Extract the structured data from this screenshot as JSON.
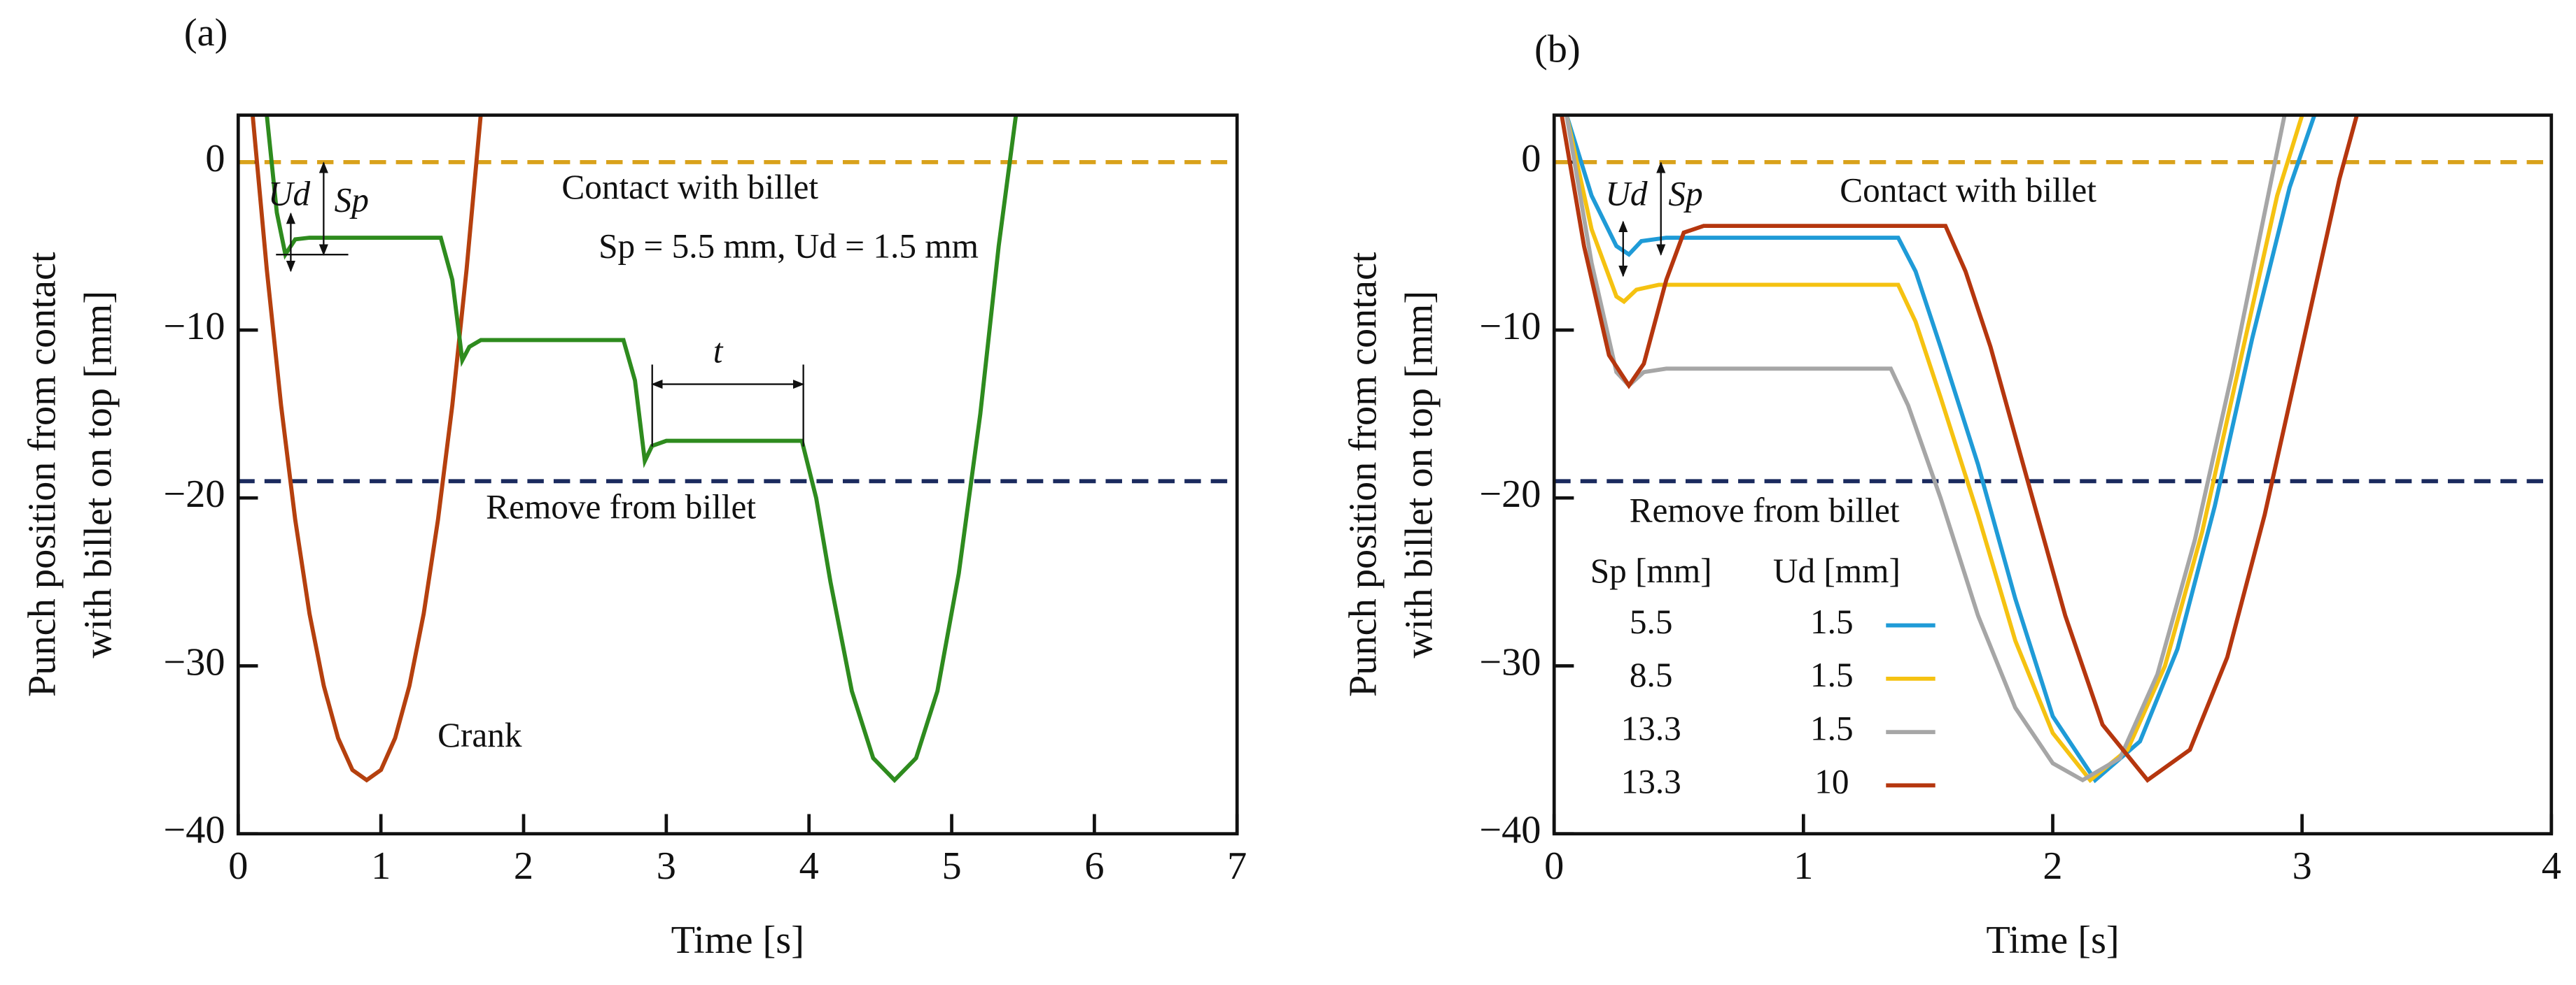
{
  "chart_data": [
    {
      "type": "line",
      "panel_label": "(a)",
      "xlabel": "Time [s]",
      "ylabel": [
        "Punch position from contact",
        "with billet on top [mm]"
      ],
      "xlim": [
        0,
        7
      ],
      "ylim": [
        -40,
        2.8
      ],
      "xticks": [
        0,
        1,
        2,
        3,
        4,
        5,
        6,
        7
      ],
      "yticks": [
        0,
        {
          "value": -10,
          "label": "−10"
        },
        {
          "value": -20,
          "label": "−20"
        },
        {
          "value": -30,
          "label": "−30"
        },
        {
          "value": -40,
          "label": "−40"
        }
      ],
      "hlines": [
        {
          "label": "Contact with billet",
          "value": 0,
          "color": "#d9a21b"
        },
        {
          "label": "Remove from billet",
          "value": -19,
          "color": "#1a2a5e"
        }
      ],
      "annotations": [
        "Crank",
        "Sp = 5.5 mm, Ud = 1.5 mm",
        "t",
        "Ud",
        "Sp"
      ],
      "series": [
        {
          "color": "#b5400e",
          "x": [
            0.1,
            0.2,
            0.3,
            0.4,
            0.5,
            0.6,
            0.7,
            0.8,
            0.9,
            1.0,
            1.1,
            1.2,
            1.3,
            1.4,
            1.5,
            1.6,
            1.7
          ],
          "values": [
            2.9,
            -6.4,
            -14.5,
            -21.3,
            -26.9,
            -31.2,
            -34.3,
            -36.2,
            -36.8,
            -36.2,
            -34.3,
            -31.2,
            -26.9,
            -21.3,
            -14.5,
            -6.4,
            2.9
          ]
        },
        {
          "color": "#2e8b1e",
          "x": [
            0.2,
            0.27,
            0.33,
            0.4,
            0.5,
            1.42,
            1.5,
            1.57,
            1.62,
            1.7,
            2.7,
            2.78,
            2.85,
            2.9,
            3.0,
            3.95,
            4.05,
            4.15,
            4.3,
            4.45,
            4.6,
            4.75,
            4.9,
            5.05,
            5.2,
            5.33,
            5.45
          ],
          "values": [
            2.8,
            -3,
            -5.5,
            -4.6,
            -4.5,
            -4.5,
            -7,
            -11.8,
            -11,
            -10.6,
            -10.6,
            -13,
            -17.8,
            -16.9,
            -16.6,
            -16.6,
            -20,
            -25,
            -31.5,
            -35.5,
            -36.8,
            -35.5,
            -31.5,
            -24.5,
            -15,
            -5,
            2.8
          ]
        }
      ]
    },
    {
      "type": "line",
      "panel_label": "(b)",
      "xlabel": "Time [s]",
      "ylabel": [
        "Punch position from contact",
        "with billet on top [mm]"
      ],
      "xlim": [
        0,
        4
      ],
      "ylim": [
        -40,
        2.8
      ],
      "xticks": [
        0,
        1,
        2,
        3,
        4
      ],
      "yticks": [
        0,
        {
          "value": -10,
          "label": "−10"
        },
        {
          "value": -20,
          "label": "−20"
        },
        {
          "value": -30,
          "label": "−30"
        },
        {
          "value": -40,
          "label": "−40"
        }
      ],
      "hlines": [
        {
          "label": "Contact with billet",
          "value": 0,
          "color": "#d9a21b"
        },
        {
          "label": "Remove from billet",
          "value": -19,
          "color": "#1a2a5e"
        }
      ],
      "annotations": [
        "Ud",
        "Sp"
      ],
      "legend_headers": [
        "Sp [mm]",
        "Ud [mm]"
      ],
      "series": [
        {
          "sp": 5.5,
          "ud": 1.5,
          "color": "#1f9bd7",
          "x": [
            0.05,
            0.15,
            0.25,
            0.3,
            0.35,
            0.45,
            1.38,
            1.45,
            1.55,
            1.7,
            1.85,
            2.0,
            2.17,
            2.35,
            2.5,
            2.65,
            2.8,
            2.95,
            3.05
          ],
          "values": [
            2.8,
            -2,
            -5,
            -5.5,
            -4.7,
            -4.5,
            -4.5,
            -6.5,
            -11,
            -18,
            -26,
            -33,
            -36.8,
            -34.5,
            -29,
            -20.5,
            -10.5,
            -1.5,
            2.8
          ]
        },
        {
          "sp": 8.5,
          "ud": 1.5,
          "color": "#f5c211",
          "x": [
            0.05,
            0.15,
            0.25,
            0.28,
            0.33,
            0.42,
            1.38,
            1.45,
            1.55,
            1.7,
            1.85,
            2.0,
            2.15,
            2.3,
            2.45,
            2.6,
            2.75,
            2.9,
            3.0
          ],
          "values": [
            2.8,
            -4,
            -8,
            -8.3,
            -7.6,
            -7.3,
            -7.3,
            -9.5,
            -14,
            -21,
            -28.5,
            -34,
            -36.8,
            -35,
            -30,
            -22,
            -12,
            -2,
            2.8
          ]
        },
        {
          "sp": 13.3,
          "ud": 1.5,
          "color": "#a6a6a6",
          "x": [
            0.05,
            0.15,
            0.25,
            0.3,
            0.36,
            0.45,
            1.35,
            1.42,
            1.55,
            1.7,
            1.85,
            2.0,
            2.12,
            2.27,
            2.42,
            2.57,
            2.72,
            2.85,
            2.93
          ],
          "values": [
            2.8,
            -6,
            -12.5,
            -13.3,
            -12.5,
            -12.3,
            -12.3,
            -14.5,
            -20,
            -27,
            -32.5,
            -35.8,
            -36.8,
            -35.5,
            -30.5,
            -22.5,
            -12.5,
            -3,
            2.8
          ]
        },
        {
          "sp": 13.3,
          "ud": 10,
          "color": "#b5360e",
          "x": [
            0.03,
            0.12,
            0.22,
            0.3,
            0.36,
            0.45,
            0.52,
            0.6,
            1.57,
            1.65,
            1.75,
            1.9,
            2.05,
            2.2,
            2.38,
            2.55,
            2.7,
            2.85,
            3.0,
            3.15,
            3.22
          ],
          "values": [
            2.8,
            -5,
            -11.5,
            -13.3,
            -12,
            -7,
            -4.2,
            -3.8,
            -3.8,
            -6.5,
            -11,
            -19,
            -27,
            -33.5,
            -36.8,
            -35,
            -29.5,
            -21,
            -11,
            -1,
            2.8
          ]
        }
      ]
    }
  ]
}
